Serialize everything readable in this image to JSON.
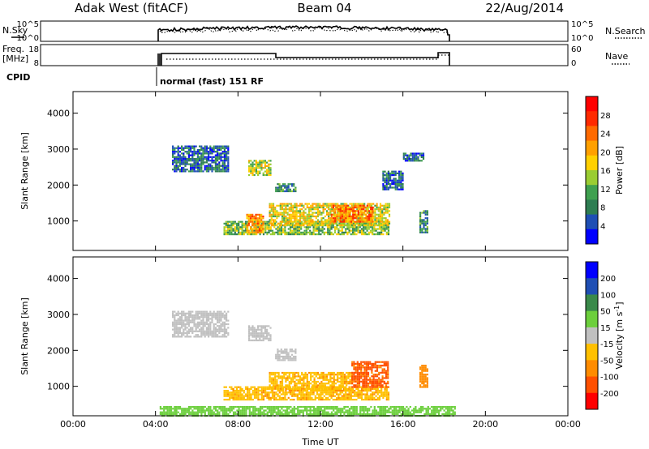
{
  "header": {
    "station": "Adak West (fitACF)",
    "beam": "Beam 04",
    "date": "22/Aug/2014"
  },
  "noise_panel": {
    "left_label": "N.Sky",
    "left_ticks": [
      "10^5",
      "10^0"
    ],
    "right_ticks": [
      "10^5",
      "10^0"
    ],
    "right_label": "N.Search"
  },
  "freq_panel": {
    "left_label_1": "Freq.",
    "left_label_2": "[MHz]",
    "left_ticks": [
      "18",
      "8"
    ],
    "right_ticks": [
      "60",
      "0"
    ],
    "right_label": "Nave"
  },
  "cpid": {
    "label": "CPID",
    "mode": "normal (fast) 151 RF"
  },
  "colors": {
    "power_scale": [
      "#0000ff",
      "#1f4fb4",
      "#2e7d52",
      "#3fa04f",
      "#9acd32",
      "#ffd000",
      "#ffa000",
      "#ff6a00",
      "#ff2a00",
      "#ff0000"
    ],
    "velocity_scale": [
      "#ff0000",
      "#ff5000",
      "#ff8c00",
      "#ffc000",
      "#c0c0c0",
      "#6ccf3c",
      "#3a8a4a",
      "#1f4fb4",
      "#0000ff"
    ]
  },
  "chart_data": [
    {
      "type": "heatmap",
      "panel": "power",
      "ylabel": "Slant Range [km]",
      "xlabel": "",
      "x_ticks": [
        "00:00",
        "04:00",
        "08:00",
        "12:00",
        "16:00",
        "20:00",
        "00:00"
      ],
      "y_ticks": [
        "1000",
        "2000",
        "3000",
        "4000"
      ],
      "xlim": [
        0,
        24
      ],
      "ylim": [
        180,
        4600
      ],
      "colorbar": {
        "label": "Power [dB]",
        "ticks": [
          "4",
          "8",
          "12",
          "16",
          "20",
          "24",
          "28"
        ],
        "range": [
          0,
          30
        ]
      },
      "regions": [
        {
          "t0": 7.3,
          "t1": 15.3,
          "r0": 650,
          "r1": 1000,
          "value": 12
        },
        {
          "t0": 9.5,
          "t1": 15.3,
          "r0": 900,
          "r1": 1500,
          "value": 16
        },
        {
          "t0": 12.5,
          "t1": 14.5,
          "r0": 1000,
          "r1": 1450,
          "value": 22
        },
        {
          "t0": 8.4,
          "t1": 9.2,
          "r0": 700,
          "r1": 1200,
          "value": 20
        },
        {
          "t0": 4.8,
          "t1": 7.5,
          "r0": 2400,
          "r1": 3100,
          "value": 6
        },
        {
          "t0": 8.5,
          "t1": 9.6,
          "r0": 2300,
          "r1": 2700,
          "value": 14
        },
        {
          "t0": 9.8,
          "t1": 10.8,
          "r0": 1850,
          "r1": 2050,
          "value": 8
        },
        {
          "t0": 15.0,
          "t1": 16.0,
          "r0": 1900,
          "r1": 2400,
          "value": 6
        },
        {
          "t0": 16.8,
          "t1": 17.2,
          "r0": 700,
          "r1": 1300,
          "value": 8
        },
        {
          "t0": 16.0,
          "t1": 17.0,
          "r0": 2700,
          "r1": 2900,
          "value": 6
        }
      ]
    },
    {
      "type": "heatmap",
      "panel": "velocity",
      "ylabel": "Slant Range [km]",
      "xlabel": "Time UT",
      "x_ticks": [
        "00:00",
        "04:00",
        "08:00",
        "12:00",
        "16:00",
        "20:00",
        "00:00"
      ],
      "y_ticks": [
        "1000",
        "2000",
        "3000",
        "4000"
      ],
      "xlim": [
        0,
        24
      ],
      "ylim": [
        180,
        4600
      ],
      "colorbar": {
        "label": "Velocity [m s-1]",
        "ticks": [
          "200",
          "100",
          "50",
          "15",
          "-15",
          "-50",
          "-100",
          "-200"
        ],
        "range": [
          -250,
          250
        ]
      },
      "regions": [
        {
          "t0": 7.3,
          "t1": 15.3,
          "r0": 650,
          "r1": 1000,
          "value": -40
        },
        {
          "t0": 9.5,
          "t1": 13.5,
          "r0": 900,
          "r1": 1400,
          "value": -40
        },
        {
          "t0": 13.5,
          "t1": 15.3,
          "r0": 1000,
          "r1": 1700,
          "value": -110
        },
        {
          "t0": 4.8,
          "t1": 7.5,
          "r0": 2400,
          "r1": 3100,
          "value": 0
        },
        {
          "t0": 8.5,
          "t1": 9.6,
          "r0": 2300,
          "r1": 2700,
          "value": 0
        },
        {
          "t0": 9.8,
          "t1": 10.8,
          "r0": 1750,
          "r1": 2050,
          "value": 0
        },
        {
          "t0": 16.8,
          "t1": 17.2,
          "r0": 1000,
          "r1": 1600,
          "value": -80
        },
        {
          "t0": 4.2,
          "t1": 18.5,
          "r0": 180,
          "r1": 450,
          "value": 30
        }
      ]
    }
  ]
}
